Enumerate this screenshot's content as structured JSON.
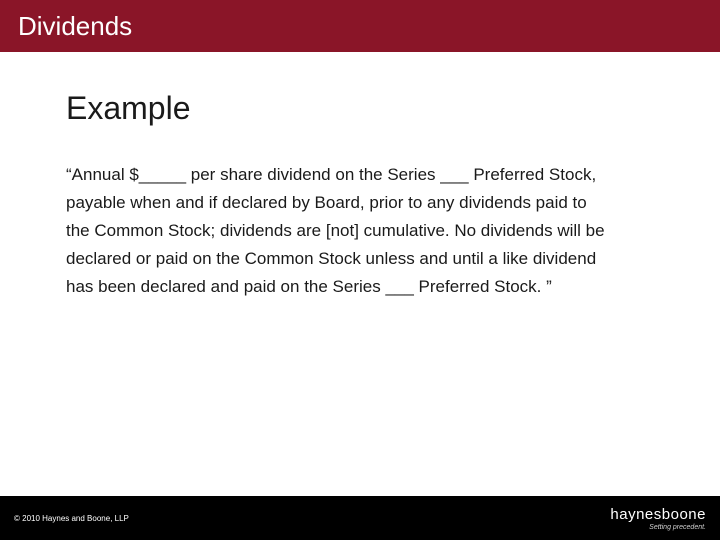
{
  "colors": {
    "header_bg": "#8a1528",
    "header_fg": "#ffffff",
    "body_fg": "#1a1a1a",
    "footer_bg": "#000000",
    "footer_fg": "#ffffff"
  },
  "header": {
    "title": "Dividends"
  },
  "content": {
    "subtitle": "Example",
    "body": "“Annual $_____ per share dividend on the Series ___ Preferred Stock, payable when and if declared by Board, prior to any dividends paid to the Common Stock; dividends are [not] cumulative. No dividends will be declared or paid on the Common Stock unless and until a like dividend has been declared and paid on the Series ___ Preferred Stock. ”"
  },
  "footer": {
    "copyright": "© 2010 Haynes and Boone, LLP",
    "logo_main_light": "haynes",
    "logo_main_bold": "boone",
    "logo_tag": "Setting precedent."
  }
}
